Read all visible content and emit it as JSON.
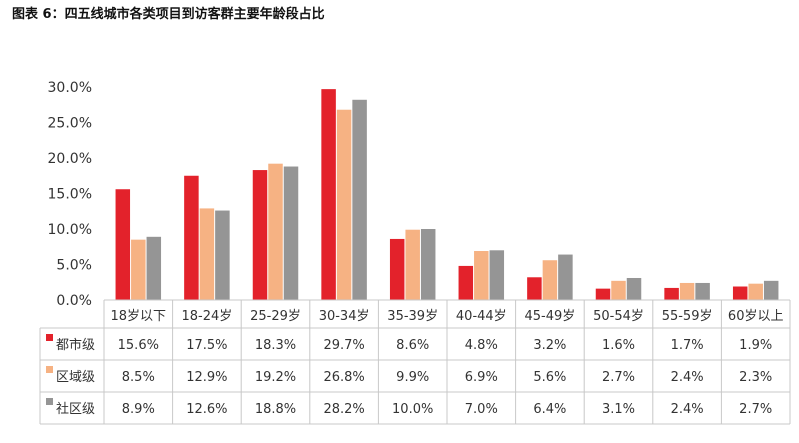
{
  "title": "图表 6：四五线城市各类项目到访客群主要年龄段占比",
  "chart_data": {
    "type": "bar",
    "categories": [
      "18岁以下",
      "18-24岁",
      "25-29岁",
      "30-34岁",
      "35-39岁",
      "40-44岁",
      "45-49岁",
      "50-54岁",
      "55-59岁",
      "60岁以上"
    ],
    "ylim": [
      0,
      30
    ],
    "yticks": [
      "0.0%",
      "5.0%",
      "10.0%",
      "15.0%",
      "20.0%",
      "25.0%",
      "30.0%"
    ],
    "grid": false,
    "legend": "in data table",
    "series": [
      {
        "name": "都市级",
        "color": "#e3222b",
        "values": [
          15.6,
          17.5,
          18.3,
          29.7,
          8.6,
          4.8,
          3.2,
          1.6,
          1.7,
          1.9
        ],
        "labels": [
          "15.6%",
          "17.5%",
          "18.3%",
          "29.7%",
          "8.6%",
          "4.8%",
          "3.2%",
          "1.6%",
          "1.7%",
          "1.9%"
        ]
      },
      {
        "name": "区域级",
        "color": "#f6b283",
        "values": [
          8.5,
          12.9,
          19.2,
          26.8,
          9.9,
          6.9,
          5.6,
          2.7,
          2.4,
          2.3
        ],
        "labels": [
          "8.5%",
          "12.9%",
          "19.2%",
          "26.8%",
          "9.9%",
          "6.9%",
          "5.6%",
          "2.7%",
          "2.4%",
          "2.3%"
        ]
      },
      {
        "name": "社区级",
        "color": "#959595",
        "values": [
          8.9,
          12.6,
          18.8,
          28.2,
          10.0,
          7.0,
          6.4,
          3.1,
          2.4,
          2.7
        ],
        "labels": [
          "8.9%",
          "12.6%",
          "18.8%",
          "28.2%",
          "10.0%",
          "7.0%",
          "6.4%",
          "3.1%",
          "2.4%",
          "2.7%"
        ]
      }
    ]
  }
}
